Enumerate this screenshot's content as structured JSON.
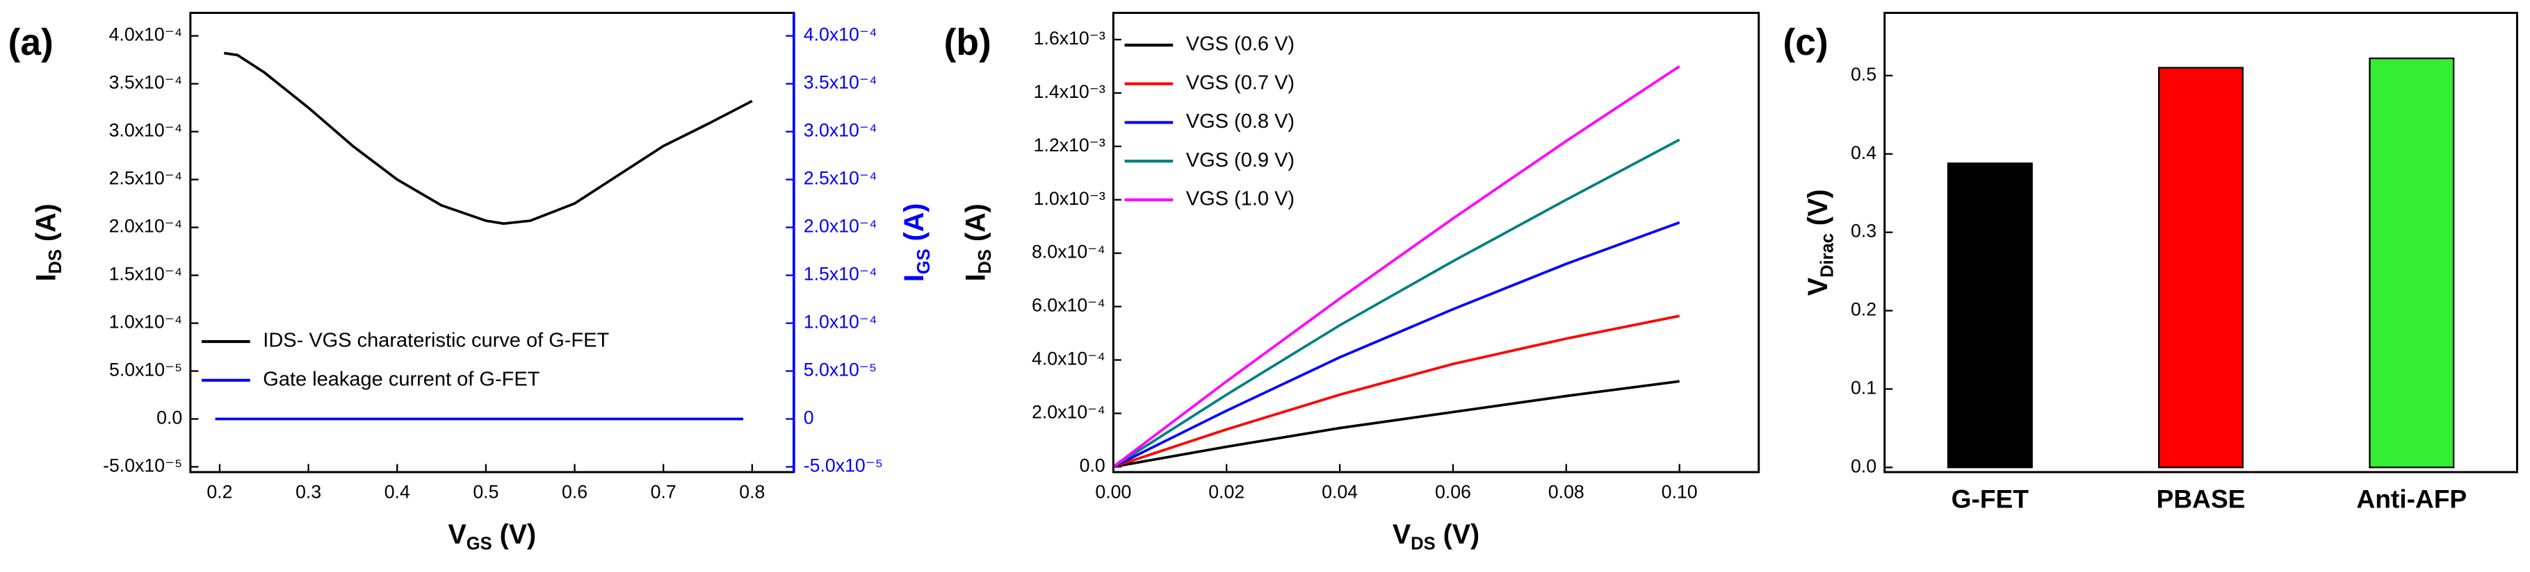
{
  "chart_data": [
    {
      "type": "line",
      "panel_label": "(a)",
      "xlabel": "V",
      "xlabel_sub": "GS",
      "xlabel_unit": " (V)",
      "ylabel": "I",
      "ylabel_sub": "DS",
      "ylabel_unit": " (A)",
      "y2label": "I",
      "y2label_sub": "GS",
      "y2label_unit": " (A)",
      "y2color": "#0000ff",
      "xlim": [
        0.167,
        0.847
      ],
      "xticks": [
        0.2,
        0.3,
        0.4,
        0.5,
        0.6,
        0.7,
        0.8
      ],
      "ylim": [
        -5.55e-05,
        0.000424
      ],
      "yticks": [
        {
          "value": -5e-05,
          "label": "-5.0x10⁻⁵"
        },
        {
          "value": 0,
          "label": "0.0"
        },
        {
          "value": 5e-05,
          "label": "5.0x10⁻⁵"
        },
        {
          "value": 0.0001,
          "label": "1.0x10⁻⁴"
        },
        {
          "value": 0.00015,
          "label": "1.5x10⁻⁴"
        },
        {
          "value": 0.0002,
          "label": "2.0x10⁻⁴"
        },
        {
          "value": 0.00025,
          "label": "2.5x10⁻⁴"
        },
        {
          "value": 0.0003,
          "label": "3.0x10⁻⁴"
        },
        {
          "value": 0.00035,
          "label": "3.5x10⁻⁴"
        },
        {
          "value": 0.0004,
          "label": "4.0x10⁻⁴"
        }
      ],
      "y2lim": [
        -5.55e-05,
        0.000424
      ],
      "y2ticks": [
        {
          "value": -5e-05,
          "label": "-5.0x10⁻⁵"
        },
        0,
        {
          "value": 5e-05,
          "label": "5.0x10⁻⁵"
        },
        {
          "value": 0.0001,
          "label": "1.0x10⁻⁴"
        },
        {
          "value": 0.00015,
          "label": "1.5x10⁻⁴"
        },
        {
          "value": 0.0002,
          "label": "2.0x10⁻⁴"
        },
        {
          "value": 0.00025,
          "label": "2.5x10⁻⁴"
        },
        {
          "value": 0.0003,
          "label": "3.0x10⁻⁴"
        },
        {
          "value": 0.00035,
          "label": "3.5x10⁻⁴"
        },
        {
          "value": 0.0004,
          "label": "4.0x10⁻⁴"
        }
      ],
      "legend": "lower left",
      "series": [
        {
          "name": "IDS- VGS charateristic curve of G-FET",
          "color": "#000000",
          "x": [
            0.205,
            0.22,
            0.25,
            0.3,
            0.35,
            0.4,
            0.45,
            0.5,
            0.52,
            0.55,
            0.6,
            0.65,
            0.7,
            0.75,
            0.8
          ],
          "values": [
            0.000382,
            0.00038,
            0.000362,
            0.000325,
            0.000285,
            0.00025,
            0.000223,
            0.000207,
            0.000204,
            0.000207,
            0.000225,
            0.000255,
            0.000285,
            0.000308,
            0.000332
          ]
        },
        {
          "name": "Gate leakage current of G-FET",
          "color": "#0000ff",
          "axis": "y2",
          "x": [
            0.195,
            0.3,
            0.4,
            0.5,
            0.6,
            0.7,
            0.79
          ],
          "values": [
            0,
            0,
            0,
            0,
            0,
            0,
            0
          ]
        }
      ]
    },
    {
      "type": "line",
      "panel_label": "(b)",
      "xlabel": "V",
      "xlabel_sub": "DS",
      "xlabel_unit": " (V)",
      "ylabel": "I",
      "ylabel_sub": "DS",
      "ylabel_unit": " (A)",
      "xlim": [
        0,
        0.114
      ],
      "xticks": [
        {
          "value": 0,
          "label": "0.00"
        },
        0.02,
        0.04,
        0.06,
        0.08,
        {
          "value": 0.1,
          "label": "0.10"
        }
      ],
      "ylim": [
        -2e-05,
        0.0017
      ],
      "yticks": [
        {
          "value": 0,
          "label": "0.0"
        },
        {
          "value": 0.0002,
          "label": "2.0x10⁻⁴"
        },
        {
          "value": 0.0004,
          "label": "4.0x10⁻⁴"
        },
        {
          "value": 0.0006,
          "label": "6.0x10⁻⁴"
        },
        {
          "value": 0.0008,
          "label": "8.0x10⁻⁴"
        },
        {
          "value": 0.001,
          "label": "1.0x10⁻³"
        },
        {
          "value": 0.0012,
          "label": "1.2x10⁻³"
        },
        {
          "value": 0.0014,
          "label": "1.4x10⁻³"
        },
        {
          "value": 0.0016,
          "label": "1.6x10⁻³"
        }
      ],
      "legend": "upper left",
      "series": [
        {
          "name": "VGS (0.6 V)",
          "color": "#000000",
          "x": [
            0,
            0.02,
            0.04,
            0.06,
            0.08,
            0.1
          ],
          "values": [
            0,
            7.5e-05,
            0.000145,
            0.000205,
            0.000265,
            0.00032
          ]
        },
        {
          "name": "VGS (0.7 V)",
          "color": "#ff0000",
          "x": [
            0,
            0.02,
            0.04,
            0.06,
            0.08,
            0.1
          ],
          "values": [
            0,
            0.00014,
            0.00027,
            0.000385,
            0.00048,
            0.000565
          ]
        },
        {
          "name": "VGS (0.8 V)",
          "color": "#0000ff",
          "x": [
            0,
            0.02,
            0.04,
            0.06,
            0.08,
            0.1
          ],
          "values": [
            0,
            0.00021,
            0.00041,
            0.00059,
            0.00076,
            0.000915
          ]
        },
        {
          "name": "VGS (0.9 V)",
          "color": "#008080",
          "x": [
            0,
            0.02,
            0.04,
            0.06,
            0.08,
            0.1
          ],
          "values": [
            0,
            0.00027,
            0.00053,
            0.00077,
            0.001,
            0.001225
          ]
        },
        {
          "name": "VGS (1.0 V)",
          "color": "#ff00ff",
          "x": [
            0,
            0.02,
            0.04,
            0.06,
            0.08,
            0.1
          ],
          "values": [
            0,
            0.00032,
            0.00063,
            0.00093,
            0.00122,
            0.0015
          ]
        }
      ]
    },
    {
      "type": "bar",
      "panel_label": "(c)",
      "ylabel": "V",
      "ylabel_sub": "Dirac",
      "ylabel_unit": " (V)",
      "categories": [
        "G-FET",
        "PBASE",
        "Anti-AFP"
      ],
      "values": [
        0.388,
        0.51,
        0.522
      ],
      "colors": [
        "#000000",
        "#ff0000",
        "#33ee33"
      ],
      "ylim": [
        -0.006,
        0.58
      ],
      "yticks": [
        {
          "value": 0,
          "label": "0.0"
        },
        0.1,
        0.2,
        0.3,
        0.4,
        0.5
      ]
    }
  ]
}
